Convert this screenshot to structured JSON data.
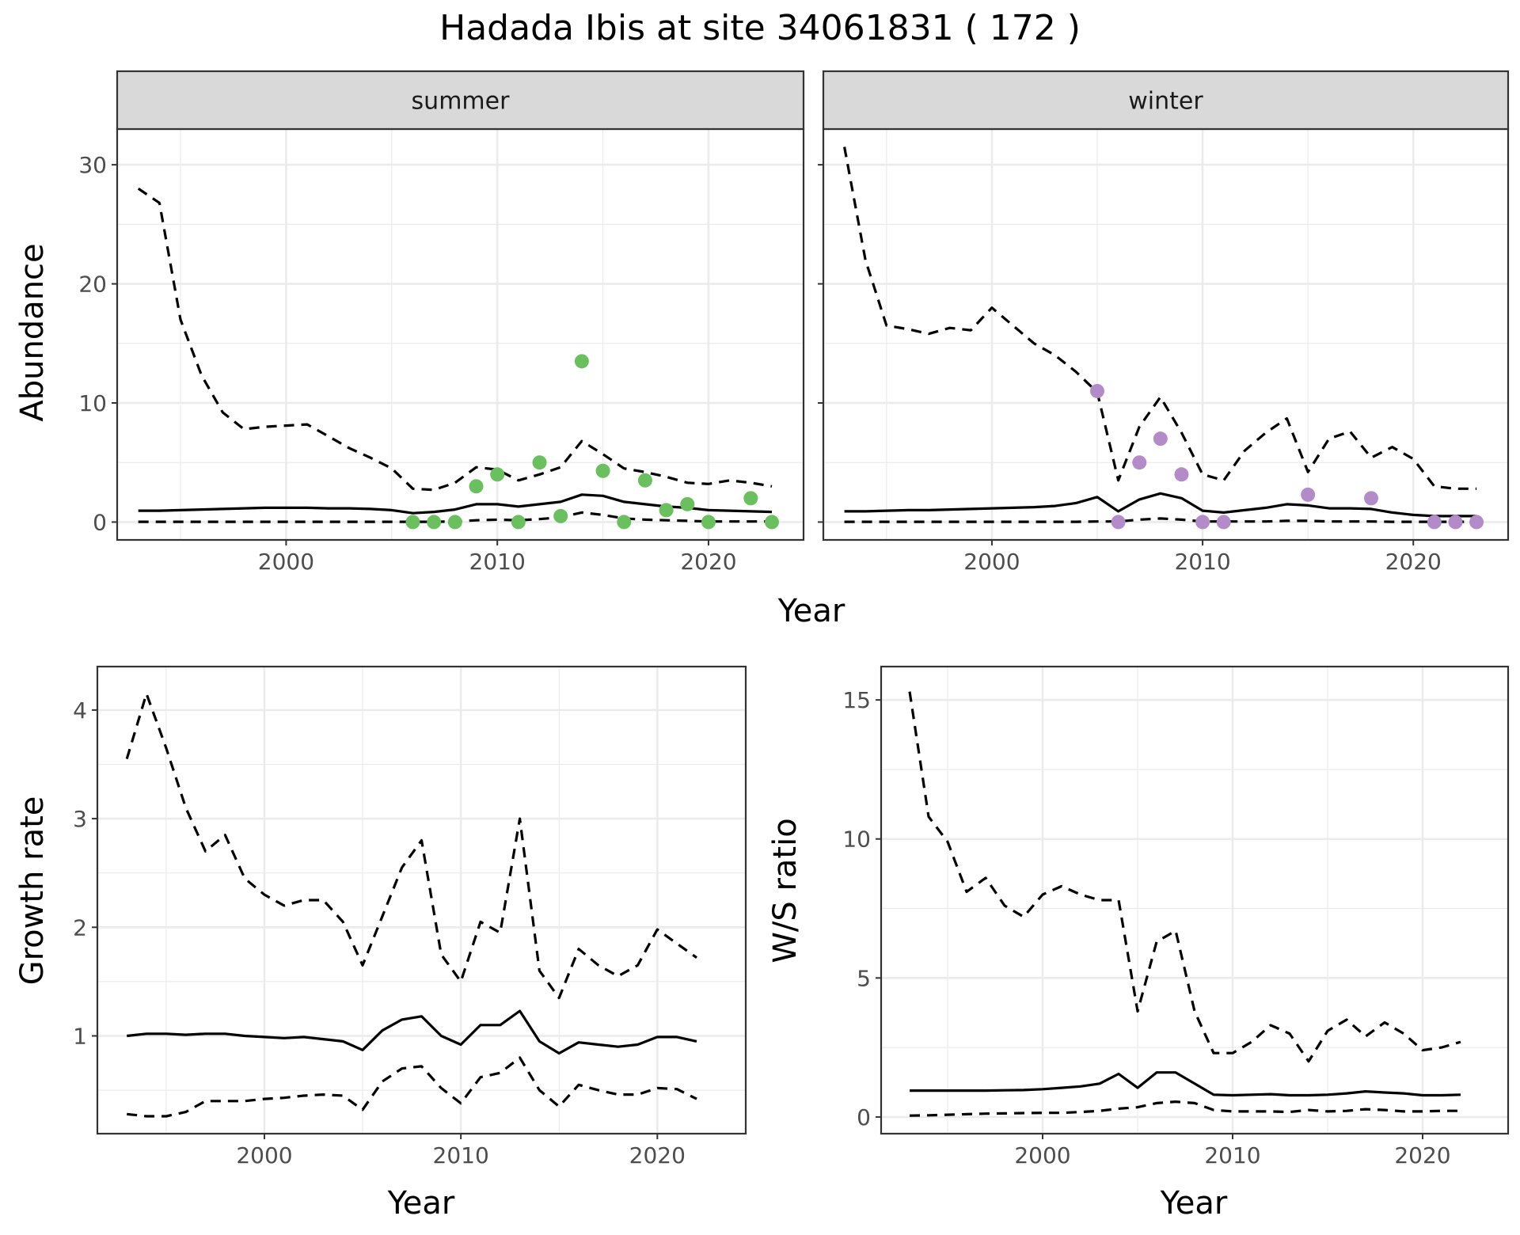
{
  "title": "Hadada Ibis at site 34061831 ( 172 )",
  "colors": {
    "summer_points": "#6ABF5E",
    "winter_points": "#B38BC9",
    "lines": "#000000",
    "strip_fill": "#D9D9D9",
    "grid": "#EBEBEB"
  },
  "chart_data": [
    {
      "type": "line",
      "panel": "summer",
      "strip_label": "summer",
      "xlabel": "Year",
      "ylabel": "Abundance",
      "xlim": [
        1992,
        2024.5
      ],
      "ylim": [
        -1.5,
        33
      ],
      "x_ticks": [
        2000,
        2010,
        2020
      ],
      "y_ticks": [
        0,
        10,
        20,
        30
      ],
      "grid": true,
      "x": [
        1993,
        1994,
        1995,
        1996,
        1997,
        1998,
        1999,
        2000,
        2001,
        2002,
        2003,
        2004,
        2005,
        2006,
        2007,
        2008,
        2009,
        2010,
        2011,
        2012,
        2013,
        2014,
        2015,
        2016,
        2017,
        2018,
        2019,
        2020,
        2021,
        2022,
        2023
      ],
      "series": [
        {
          "role": "estimate",
          "style": "solid",
          "values": [
            0.95,
            0.95,
            1.0,
            1.05,
            1.1,
            1.15,
            1.2,
            1.2,
            1.2,
            1.15,
            1.15,
            1.1,
            1.0,
            0.75,
            0.85,
            1.05,
            1.5,
            1.5,
            1.3,
            1.5,
            1.7,
            2.3,
            2.2,
            1.7,
            1.5,
            1.3,
            1.2,
            1.0,
            0.95,
            0.9,
            0.85
          ]
        },
        {
          "role": "upper",
          "style": "dashed",
          "values": [
            28.0,
            26.8,
            17.0,
            12.3,
            9.2,
            7.8,
            8.0,
            8.1,
            8.2,
            7.2,
            6.2,
            5.4,
            4.5,
            2.8,
            2.7,
            3.3,
            4.6,
            4.4,
            3.5,
            4.0,
            4.6,
            6.8,
            5.7,
            4.5,
            4.2,
            3.8,
            3.3,
            3.2,
            3.5,
            3.3,
            3.0
          ]
        },
        {
          "role": "lower",
          "style": "dashed",
          "values": [
            0.02,
            0.02,
            0.02,
            0.02,
            0.02,
            0.02,
            0.02,
            0.02,
            0.02,
            0.02,
            0.02,
            0.02,
            0.02,
            0.02,
            0.02,
            0.05,
            0.15,
            0.2,
            0.15,
            0.25,
            0.4,
            0.8,
            0.6,
            0.3,
            0.2,
            0.15,
            0.1,
            0.05,
            0.05,
            0.05,
            0.05
          ]
        }
      ],
      "points": {
        "x": [
          2006,
          2007,
          2008,
          2009,
          2010,
          2011,
          2012,
          2013,
          2014,
          2015,
          2016,
          2017,
          2018,
          2019,
          2020,
          2022,
          2023
        ],
        "y": [
          0,
          0,
          0,
          3,
          4,
          0,
          5,
          0.5,
          13.5,
          4.3,
          0,
          3.5,
          1,
          1.5,
          0,
          2,
          0
        ]
      }
    },
    {
      "type": "line",
      "panel": "winter",
      "strip_label": "winter",
      "xlabel": "Year",
      "ylabel": "Abundance",
      "xlim": [
        1992,
        2024.5
      ],
      "ylim": [
        -1.5,
        33
      ],
      "x_ticks": [
        2000,
        2010,
        2020
      ],
      "y_ticks": [
        0,
        10,
        20,
        30
      ],
      "grid": true,
      "x": [
        1993,
        1994,
        1995,
        1996,
        1997,
        1998,
        1999,
        2000,
        2001,
        2002,
        2003,
        2004,
        2005,
        2006,
        2007,
        2008,
        2009,
        2010,
        2011,
        2012,
        2013,
        2014,
        2015,
        2016,
        2017,
        2018,
        2019,
        2020,
        2021,
        2022,
        2023
      ],
      "series": [
        {
          "role": "estimate",
          "style": "solid",
          "values": [
            0.9,
            0.9,
            0.95,
            1.0,
            1.0,
            1.05,
            1.1,
            1.15,
            1.2,
            1.25,
            1.35,
            1.6,
            2.1,
            0.9,
            1.9,
            2.4,
            2.0,
            0.95,
            0.8,
            1.0,
            1.2,
            1.5,
            1.4,
            1.15,
            1.15,
            1.1,
            0.8,
            0.6,
            0.5,
            0.5,
            0.5
          ]
        },
        {
          "role": "upper",
          "style": "dashed",
          "values": [
            31.5,
            22.0,
            16.5,
            16.2,
            15.8,
            16.3,
            16.1,
            18.0,
            16.5,
            15.0,
            14.0,
            12.6,
            10.9,
            3.5,
            8.0,
            10.5,
            7.5,
            4.0,
            3.5,
            6.0,
            7.5,
            8.7,
            4.2,
            7.0,
            7.6,
            5.4,
            6.3,
            5.3,
            3.0,
            2.8,
            2.8
          ]
        },
        {
          "role": "lower",
          "style": "dashed",
          "values": [
            0.02,
            0.02,
            0.02,
            0.02,
            0.02,
            0.02,
            0.02,
            0.02,
            0.02,
            0.02,
            0.02,
            0.02,
            0.05,
            0.05,
            0.2,
            0.3,
            0.2,
            0.05,
            0.05,
            0.05,
            0.05,
            0.1,
            0.1,
            0.05,
            0.05,
            0.05,
            0.02,
            0.02,
            0.02,
            0.02,
            0.02
          ]
        }
      ],
      "points": {
        "x": [
          2005,
          2006,
          2007,
          2008,
          2009,
          2010,
          2011,
          2015,
          2018,
          2021,
          2022,
          2023
        ],
        "y": [
          11,
          0,
          5,
          7,
          4,
          0,
          0,
          2.3,
          2,
          0,
          0,
          0
        ]
      }
    },
    {
      "type": "line",
      "panel": "growth",
      "xlabel": "Year",
      "ylabel": "Growth rate",
      "xlim": [
        1991.5,
        2024.5
      ],
      "ylim": [
        0.1,
        4.4
      ],
      "x_ticks": [
        2000,
        2010,
        2020
      ],
      "y_ticks": [
        1,
        2,
        3,
        4
      ],
      "grid": true,
      "x": [
        1993,
        1994,
        1995,
        1996,
        1997,
        1998,
        1999,
        2000,
        2001,
        2002,
        2003,
        2004,
        2005,
        2006,
        2007,
        2008,
        2009,
        2010,
        2011,
        2012,
        2013,
        2014,
        2015,
        2016,
        2017,
        2018,
        2019,
        2020,
        2021,
        2022
      ],
      "series": [
        {
          "role": "estimate",
          "style": "solid",
          "values": [
            1.0,
            1.02,
            1.02,
            1.01,
            1.02,
            1.02,
            1.0,
            0.99,
            0.98,
            0.99,
            0.97,
            0.95,
            0.87,
            1.05,
            1.15,
            1.18,
            1.0,
            0.92,
            1.1,
            1.1,
            1.23,
            0.95,
            0.84,
            0.94,
            0.92,
            0.9,
            0.92,
            0.99,
            0.99,
            0.95
          ]
        },
        {
          "role": "upper",
          "style": "dashed",
          "values": [
            3.55,
            4.15,
            3.65,
            3.1,
            2.7,
            2.85,
            2.45,
            2.3,
            2.2,
            2.25,
            2.25,
            2.05,
            1.65,
            2.1,
            2.55,
            2.8,
            1.75,
            1.5,
            2.05,
            1.95,
            3.0,
            1.6,
            1.35,
            1.8,
            1.65,
            1.55,
            1.65,
            1.98,
            1.85,
            1.72
          ]
        },
        {
          "role": "lower",
          "style": "dashed",
          "values": [
            0.28,
            0.26,
            0.26,
            0.3,
            0.4,
            0.4,
            0.4,
            0.42,
            0.43,
            0.45,
            0.46,
            0.45,
            0.32,
            0.58,
            0.7,
            0.72,
            0.52,
            0.38,
            0.62,
            0.66,
            0.8,
            0.5,
            0.35,
            0.55,
            0.5,
            0.46,
            0.46,
            0.52,
            0.51,
            0.42
          ]
        }
      ]
    },
    {
      "type": "line",
      "panel": "ratio",
      "xlabel": "Year",
      "ylabel": "W/S ratio",
      "xlim": [
        1991.5,
        2024.5
      ],
      "ylim": [
        -0.6,
        16.2
      ],
      "x_ticks": [
        2000,
        2010,
        2020
      ],
      "y_ticks": [
        0,
        5,
        10,
        15
      ],
      "grid": true,
      "x": [
        1993,
        1994,
        1995,
        1996,
        1997,
        1998,
        1999,
        2000,
        2001,
        2002,
        2003,
        2004,
        2005,
        2006,
        2007,
        2008,
        2009,
        2010,
        2011,
        2012,
        2013,
        2014,
        2015,
        2016,
        2017,
        2018,
        2019,
        2020,
        2021,
        2022
      ],
      "series": [
        {
          "role": "estimate",
          "style": "solid",
          "values": [
            0.95,
            0.95,
            0.95,
            0.95,
            0.95,
            0.96,
            0.97,
            1.0,
            1.05,
            1.1,
            1.2,
            1.55,
            1.05,
            1.6,
            1.6,
            1.2,
            0.8,
            0.78,
            0.8,
            0.82,
            0.78,
            0.78,
            0.8,
            0.85,
            0.92,
            0.88,
            0.85,
            0.78,
            0.78,
            0.8
          ]
        },
        {
          "role": "upper",
          "style": "dashed",
          "values": [
            15.3,
            10.8,
            9.9,
            8.1,
            8.6,
            7.6,
            7.2,
            8.0,
            8.3,
            8.0,
            7.8,
            7.8,
            3.8,
            6.3,
            6.7,
            3.8,
            2.3,
            2.3,
            2.7,
            3.3,
            3.0,
            2.0,
            3.1,
            3.5,
            2.9,
            3.4,
            3.0,
            2.4,
            2.5,
            2.7
          ]
        },
        {
          "role": "lower",
          "style": "dashed",
          "values": [
            0.05,
            0.06,
            0.08,
            0.1,
            0.12,
            0.13,
            0.14,
            0.15,
            0.15,
            0.18,
            0.22,
            0.3,
            0.35,
            0.5,
            0.55,
            0.5,
            0.25,
            0.2,
            0.2,
            0.2,
            0.18,
            0.25,
            0.2,
            0.22,
            0.28,
            0.25,
            0.2,
            0.2,
            0.22,
            0.22
          ]
        }
      ]
    }
  ]
}
